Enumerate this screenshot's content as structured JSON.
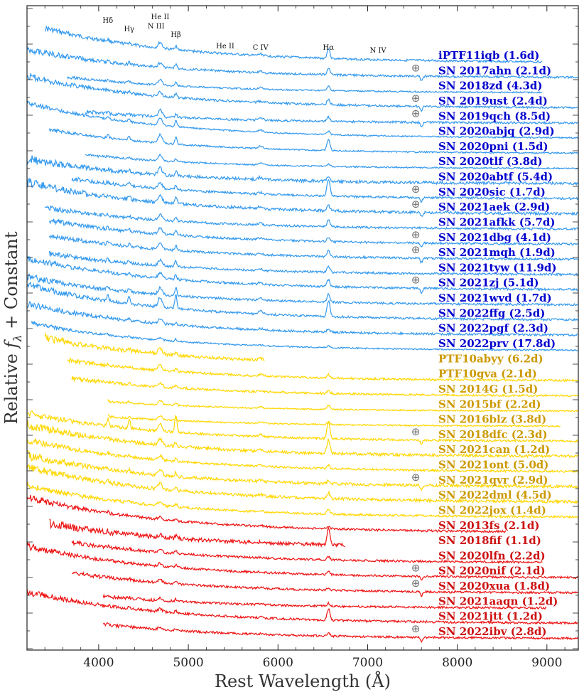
{
  "chart_data": {
    "type": "line",
    "xlabel": "Rest Wavelength (Å)",
    "ylabel": "Relative f_λ + Constant",
    "ylabel_parts": [
      "Relative ",
      "f",
      "λ",
      " + Constant"
    ],
    "xlim": [
      3200,
      9350
    ],
    "xticks": [
      4000,
      5000,
      6000,
      7000,
      8000,
      9000
    ],
    "xtick_labels": [
      "4000",
      "5000",
      "6000",
      "7000",
      "8000",
      "9000"
    ],
    "telluric_symbol": "⊕",
    "line_ids": [
      {
        "label": "Hδ",
        "wavelength": 4102
      },
      {
        "label": "Hγ",
        "wavelength": 4340
      },
      {
        "label": "N III",
        "wavelength": 4640
      },
      {
        "label": "He II",
        "wavelength": 4686
      },
      {
        "label": "Hβ",
        "wavelength": 4861
      },
      {
        "label": "He II",
        "wavelength": 5411
      },
      {
        "label": "C IV",
        "wavelength": 5805
      },
      {
        "label": "Hα",
        "wavelength": 6563
      },
      {
        "label": "N IV",
        "wavelength": 7115
      }
    ],
    "colors": {
      "blue": "#3399ee",
      "yellow": "#ffd700",
      "red": "#ee1111",
      "label_blue": "#0000cc",
      "label_yellow": "#cc9900",
      "label_red": "#cc1111",
      "telluric": "#707070"
    },
    "series": [
      {
        "name": "iPTF11iqb (1.6d)",
        "group": "blue",
        "range": [
          3400,
          8950
        ],
        "level": 0.0,
        "slope": 55,
        "noise": 3,
        "halpha": 14,
        "hbeta": 6,
        "heii": 8,
        "telluric": false
      },
      {
        "name": "SN 2017ahn (2.1d)",
        "group": "blue",
        "range": [
          3200,
          9350
        ],
        "level": 1.0,
        "slope": 40,
        "noise": 3,
        "halpha": 10,
        "hbeta": 5,
        "heii": 6,
        "telluric": true
      },
      {
        "name": "SN 2018zd (4.3d)",
        "group": "blue",
        "range": [
          3650,
          8950
        ],
        "level": 2.0,
        "slope": 30,
        "noise": 2,
        "halpha": 6,
        "hbeta": 5,
        "heii": 8,
        "telluric": false
      },
      {
        "name": "SN 2019ust (2.4d)",
        "group": "blue",
        "range": [
          3200,
          9350
        ],
        "level": 3.0,
        "slope": 45,
        "noise": 3,
        "halpha": 8,
        "hbeta": 5,
        "heii": 6,
        "telluric": true
      },
      {
        "name": "SN 2019qch (8.5d)",
        "group": "blue",
        "range": [
          3850,
          9350
        ],
        "level": 4.0,
        "slope": 25,
        "noise": 3,
        "halpha": 6,
        "hbeta": 5,
        "heii": 10,
        "telluric": true
      },
      {
        "name": "SN 2020abjq (2.9d)",
        "group": "blue",
        "range": [
          3200,
          9350
        ],
        "level": 5.0,
        "slope": 50,
        "noise": 2,
        "halpha": 5,
        "hbeta": 8,
        "heii": 10,
        "telluric": false
      },
      {
        "name": "SN 2020pni (1.5d)",
        "group": "blue",
        "range": [
          3450,
          9350
        ],
        "level": 6.0,
        "slope": 40,
        "noise": 2,
        "halpha": 16,
        "hbeta": 10,
        "heii": 12,
        "telluric": false
      },
      {
        "name": "SN 2020tlf (3.8d)",
        "group": "blue",
        "range": [
          3850,
          9350
        ],
        "level": 7.0,
        "slope": 30,
        "noise": 2,
        "halpha": 4,
        "hbeta": 4,
        "heii": 8,
        "telluric": false
      },
      {
        "name": "SN 2020abtf (5.4d)",
        "group": "blue",
        "range": [
          3200,
          9350
        ],
        "level": 8.0,
        "slope": 35,
        "noise": 4,
        "halpha": 6,
        "hbeta": 6,
        "heii": 10,
        "telluric": false
      },
      {
        "name": "SN 2020sic (1.7d)",
        "group": "blue",
        "range": [
          3700,
          9350
        ],
        "level": 9.0,
        "slope": 40,
        "noise": 3,
        "halpha": 24,
        "hbeta": 6,
        "heii": 8,
        "telluric": true
      },
      {
        "name": "SN 2021aek (2.9d)",
        "group": "blue",
        "range": [
          3200,
          9350
        ],
        "level": 10.0,
        "slope": 45,
        "noise": 4,
        "halpha": 8,
        "hbeta": 8,
        "heii": 10,
        "telluric": true
      },
      {
        "name": "SN 2021afkk (5.7d)",
        "group": "blue",
        "range": [
          3400,
          9350
        ],
        "level": 11.0,
        "slope": 35,
        "noise": 3,
        "halpha": 10,
        "hbeta": 5,
        "heii": 8,
        "telluric": false
      },
      {
        "name": "SN 2021dbg (4.1d)",
        "group": "blue",
        "range": [
          3450,
          9350
        ],
        "level": 12.0,
        "slope": 40,
        "noise": 3,
        "halpha": 6,
        "hbeta": 6,
        "heii": 8,
        "telluric": true
      },
      {
        "name": "SN 2021mqh (1.9d)",
        "group": "blue",
        "range": [
          3450,
          9350
        ],
        "level": 13.0,
        "slope": 40,
        "noise": 3,
        "halpha": 8,
        "hbeta": 6,
        "heii": 8,
        "telluric": true
      },
      {
        "name": "SN 2021tyw (11.9d)",
        "group": "blue",
        "range": [
          3450,
          9350
        ],
        "level": 14.0,
        "slope": 35,
        "noise": 3,
        "halpha": 8,
        "hbeta": 8,
        "heii": 8,
        "telluric": false
      },
      {
        "name": "SN 2021zj (5.1d)",
        "group": "blue",
        "range": [
          3200,
          9350
        ],
        "level": 15.0,
        "slope": 45,
        "noise": 3,
        "halpha": 10,
        "hbeta": 6,
        "heii": 8,
        "telluric": true
      },
      {
        "name": "SN 2021wvd (1.7d)",
        "group": "blue",
        "range": [
          3200,
          9350
        ],
        "level": 16.0,
        "slope": 40,
        "noise": 3,
        "halpha": 12,
        "hbeta": 12,
        "heii": 10,
        "telluric": false
      },
      {
        "name": "SN 2022ffg (2.5d)",
        "group": "blue",
        "range": [
          3200,
          9350
        ],
        "level": 17.0,
        "slope": 50,
        "noise": 3,
        "halpha": 22,
        "hbeta": 20,
        "heii": 14,
        "telluric": false
      },
      {
        "name": "SN 2022pgf (2.3d)",
        "group": "blue",
        "range": [
          3200,
          9350
        ],
        "level": 18.0,
        "slope": 45,
        "noise": 3,
        "halpha": 4,
        "hbeta": 4,
        "heii": 6,
        "telluric": false
      },
      {
        "name": "SN 2022prv (17.8d)",
        "group": "blue",
        "range": [
          3250,
          9350
        ],
        "level": 19.0,
        "slope": 40,
        "noise": 2,
        "halpha": 3,
        "hbeta": 3,
        "heii": 3,
        "telluric": false
      },
      {
        "name": "PTF10abyy (6.2d)",
        "group": "yellow",
        "range": [
          3400,
          5850
        ],
        "level": 20.0,
        "slope": 45,
        "noise": 4,
        "halpha": 0,
        "hbeta": 4,
        "heii": 8,
        "telluric": false
      },
      {
        "name": "PTF10gva (2.1d)",
        "group": "yellow",
        "range": [
          3650,
          9350
        ],
        "level": 21.0,
        "slope": 40,
        "noise": 3,
        "halpha": 5,
        "hbeta": 5,
        "heii": 8,
        "telluric": false
      },
      {
        "name": "SN 2014G (1.5d)",
        "group": "yellow",
        "range": [
          3700,
          9350
        ],
        "level": 22.0,
        "slope": 35,
        "noise": 3,
        "halpha": 4,
        "hbeta": 4,
        "heii": 6,
        "telluric": false
      },
      {
        "name": "SN 2015bf (2.2d)",
        "group": "yellow",
        "range": [
          4100,
          9350
        ],
        "level": 23.0,
        "slope": 25,
        "noise": 2,
        "halpha": 6,
        "hbeta": 4,
        "heii": 6,
        "telluric": false
      },
      {
        "name": "SN 2016blz (3.8d)",
        "group": "yellow",
        "range": [
          4100,
          9150
        ],
        "level": 24.0,
        "slope": 25,
        "noise": 2,
        "halpha": 4,
        "hbeta": 4,
        "heii": 6,
        "telluric": false
      },
      {
        "name": "SN 2018dfc (2.3d)",
        "group": "yellow",
        "range": [
          3200,
          9350
        ],
        "level": 25.0,
        "slope": 40,
        "noise": 3,
        "halpha": 24,
        "hbeta": 24,
        "heii": 10,
        "telluric": true
      },
      {
        "name": "SN 2021can (1.2d)",
        "group": "yellow",
        "range": [
          3200,
          9350
        ],
        "level": 26.0,
        "slope": 45,
        "noise": 4,
        "halpha": 20,
        "hbeta": 6,
        "heii": 8,
        "telluric": false
      },
      {
        "name": "SN 2021ont (5.0d)",
        "group": "yellow",
        "range": [
          3200,
          9350
        ],
        "level": 27.0,
        "slope": 45,
        "noise": 3,
        "halpha": 5,
        "hbeta": 5,
        "heii": 6,
        "telluric": false
      },
      {
        "name": "SN 2021qvr (2.9d)",
        "group": "yellow",
        "range": [
          3200,
          9350
        ],
        "level": 28.0,
        "slope": 45,
        "noise": 4,
        "halpha": 4,
        "hbeta": 6,
        "heii": 8,
        "telluric": true
      },
      {
        "name": "SN 2022dml (4.5d)",
        "group": "yellow",
        "range": [
          3200,
          9350
        ],
        "level": 29.0,
        "slope": 50,
        "noise": 4,
        "halpha": 8,
        "hbeta": 6,
        "heii": 8,
        "telluric": false
      },
      {
        "name": "SN 2022jox (1.4d)",
        "group": "yellow",
        "range": [
          3200,
          9350
        ],
        "level": 30.0,
        "slope": 45,
        "noise": 3,
        "halpha": 6,
        "hbeta": 4,
        "heii": 6,
        "telluric": false
      },
      {
        "name": "SN 2013fs (2.1d)",
        "group": "red",
        "range": [
          3200,
          8550
        ],
        "level": 31.0,
        "slope": 50,
        "noise": 3,
        "halpha": 4,
        "hbeta": 4,
        "heii": 4,
        "telluric": false
      },
      {
        "name": "SN 2018fif (1.1d)",
        "group": "red",
        "range": [
          3450,
          6750
        ],
        "level": 32.0,
        "slope": 40,
        "noise": 5,
        "halpha": 26,
        "hbeta": 3,
        "heii": 4,
        "telluric": false
      },
      {
        "name": "SN 2020lfn (2.2d)",
        "group": "red",
        "range": [
          3700,
          8950
        ],
        "level": 33.0,
        "slope": 40,
        "noise": 3,
        "halpha": 4,
        "hbeta": 3,
        "heii": 4,
        "telluric": false
      },
      {
        "name": "SN 2020nif (2.1d)",
        "group": "red",
        "range": [
          3200,
          9350
        ],
        "level": 34.0,
        "slope": 45,
        "noise": 3,
        "halpha": 4,
        "hbeta": 3,
        "heii": 4,
        "telluric": true
      },
      {
        "name": "SN 2020xua (1.8d)",
        "group": "red",
        "range": [
          3700,
          9350
        ],
        "level": 35.0,
        "slope": 40,
        "noise": 3,
        "halpha": 4,
        "hbeta": 3,
        "heii": 4,
        "telluric": true
      },
      {
        "name": "SN 2021aaqn (1.2d)",
        "group": "red",
        "range": [
          4050,
          9000
        ],
        "level": 36.0,
        "slope": 30,
        "noise": 3,
        "halpha": 4,
        "hbeta": 3,
        "heii": 4,
        "telluric": false
      },
      {
        "name": "SN 2021jtt (1.2d)",
        "group": "red",
        "range": [
          3200,
          9350
        ],
        "level": 37.0,
        "slope": 45,
        "noise": 3,
        "halpha": 16,
        "hbeta": 3,
        "heii": 4,
        "telluric": false
      },
      {
        "name": "SN 2022ibv (2.8d)",
        "group": "red",
        "range": [
          4050,
          9350
        ],
        "level": 38.0,
        "slope": 35,
        "noise": 3,
        "halpha": 4,
        "hbeta": 3,
        "heii": 4,
        "telluric": true
      }
    ]
  }
}
